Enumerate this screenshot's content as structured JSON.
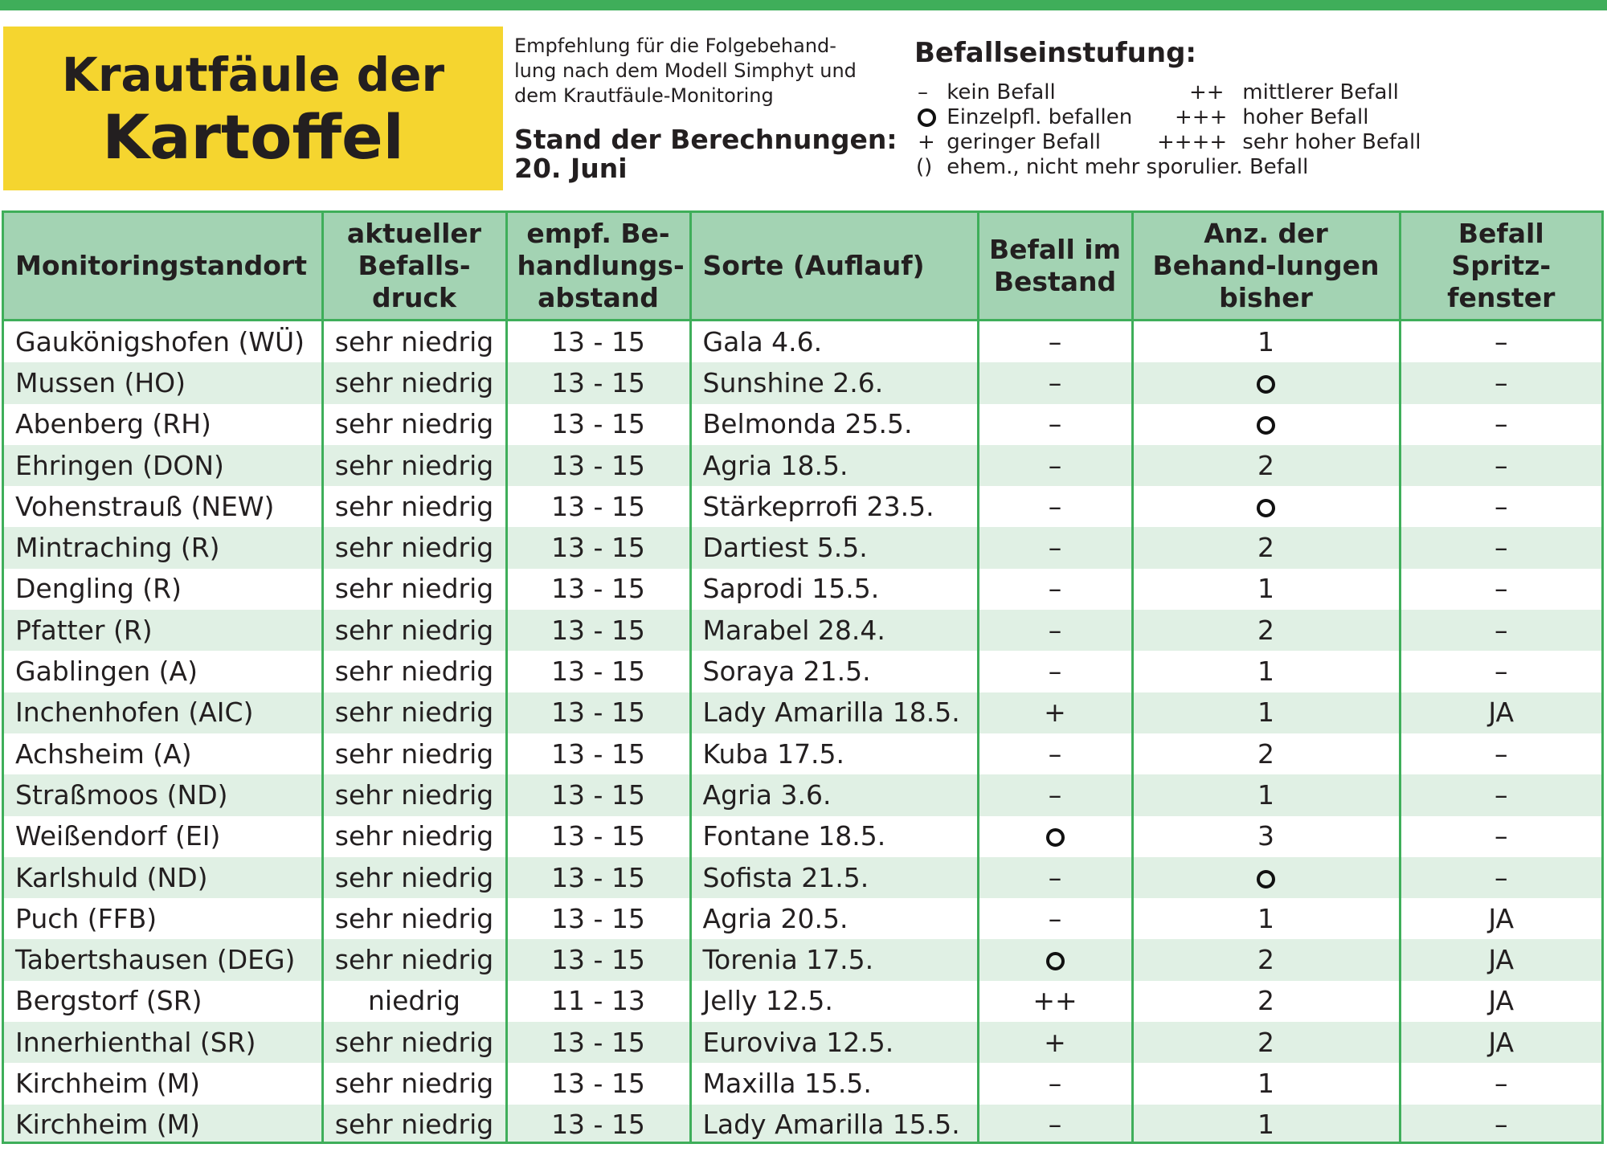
{
  "header": {
    "title_line1": "Krautfäule der",
    "title_line2": "Kartoffel",
    "intro": "Empfehlung für die Folgebehand-\nlung nach dem Modell Simphyt und\ndem Krautfäule-Monitoring",
    "stand_label": "Stand der Berechnungen:",
    "stand_date": "20. Juni"
  },
  "legend": {
    "title": "Befallseinstufung:",
    "items": [
      {
        "symbol": "–",
        "label": "kein Befall"
      },
      {
        "symbol": "ring-icon",
        "label": "Einzelpfl. befallen"
      },
      {
        "symbol": "+",
        "label": "geringer Befall"
      },
      {
        "symbol": "()",
        "label": "ehem., nicht mehr sporulier. Befall"
      },
      {
        "symbol": "++",
        "label": "mittlerer Befall"
      },
      {
        "symbol": "+++",
        "label": "hoher Befall"
      },
      {
        "symbol": "++++",
        "label": "sehr hoher Befall"
      }
    ]
  },
  "table": {
    "headers": [
      "Monitoringstandort",
      "aktueller Befalls-druck",
      "empf. Be-handlungs-abstand",
      "Sorte (Auflauf)",
      "Befall im Bestand",
      "Anz. der Behand-lungen bisher",
      "Befall Spritz-fenster"
    ],
    "rows": [
      [
        "Gaukönigshofen (WÜ)",
        "sehr niedrig",
        "13 - 15",
        "Gala 4.6.",
        "–",
        "1",
        "–"
      ],
      [
        "Mussen (HO)",
        "sehr niedrig",
        "13 - 15",
        "Sunshine 2.6.",
        "–",
        "O",
        "–"
      ],
      [
        "Abenberg (RH)",
        "sehr niedrig",
        "13 - 15",
        "Belmonda 25.5.",
        "–",
        "O",
        "–"
      ],
      [
        "Ehringen (DON)",
        "sehr niedrig",
        "13 - 15",
        "Agria 18.5.",
        "–",
        "2",
        "–"
      ],
      [
        "Vohenstrauß (NEW)",
        "sehr niedrig",
        "13 - 15",
        "Stärkeprrofi 23.5.",
        "–",
        "O",
        "–"
      ],
      [
        "Mintraching (R)",
        "sehr niedrig",
        "13 - 15",
        "Dartiest 5.5.",
        "–",
        "2",
        "–"
      ],
      [
        "Dengling (R)",
        "sehr niedrig",
        "13 - 15",
        "Saprodi 15.5.",
        "–",
        "1",
        "–"
      ],
      [
        "Pfatter (R)",
        "sehr niedrig",
        "13 - 15",
        "Marabel 28.4.",
        "–",
        "2",
        "–"
      ],
      [
        "Gablingen (A)",
        "sehr niedrig",
        "13 - 15",
        "Soraya 21.5.",
        "–",
        "1",
        "–"
      ],
      [
        "Inchenhofen (AIC)",
        "sehr niedrig",
        "13 - 15",
        "Lady Amarilla 18.5.",
        "+",
        "1",
        "JA"
      ],
      [
        "Achsheim (A)",
        "sehr niedrig",
        "13 - 15",
        "Kuba 17.5.",
        "–",
        "2",
        "–"
      ],
      [
        "Straßmoos (ND)",
        "sehr niedrig",
        "13 - 15",
        "Agria 3.6.",
        "–",
        "1",
        "–"
      ],
      [
        "Weißendorf (EI)",
        "sehr niedrig",
        "13 - 15",
        "Fontane 18.5.",
        "O",
        "3",
        "–"
      ],
      [
        "Karlshuld (ND)",
        "sehr niedrig",
        "13 - 15",
        "Sofista 21.5.",
        "–",
        "O",
        "–"
      ],
      [
        "Puch (FFB)",
        "sehr niedrig",
        "13 - 15",
        "Agria 20.5.",
        "–",
        "1",
        "JA"
      ],
      [
        "Tabertshausen (DEG)",
        "sehr niedrig",
        "13 - 15",
        "Torenia 17.5.",
        "O",
        "2",
        "JA"
      ],
      [
        "Bergstorf (SR)",
        "niedrig",
        "11 - 13",
        "Jelly 12.5.",
        "++",
        "2",
        "JA"
      ],
      [
        "Innerhienthal (SR)",
        "sehr niedrig",
        "13 - 15",
        "Euroviva 12.5.",
        "+",
        "2",
        "JA"
      ],
      [
        "Kirchheim (M)",
        "sehr niedrig",
        "13 - 15",
        "Maxilla 15.5.",
        "–",
        "1",
        "–"
      ],
      [
        "Kirchheim (M)",
        "sehr niedrig",
        "13 - 15",
        "Lady Amarilla 15.5.",
        "–",
        "1",
        "–"
      ]
    ]
  }
}
